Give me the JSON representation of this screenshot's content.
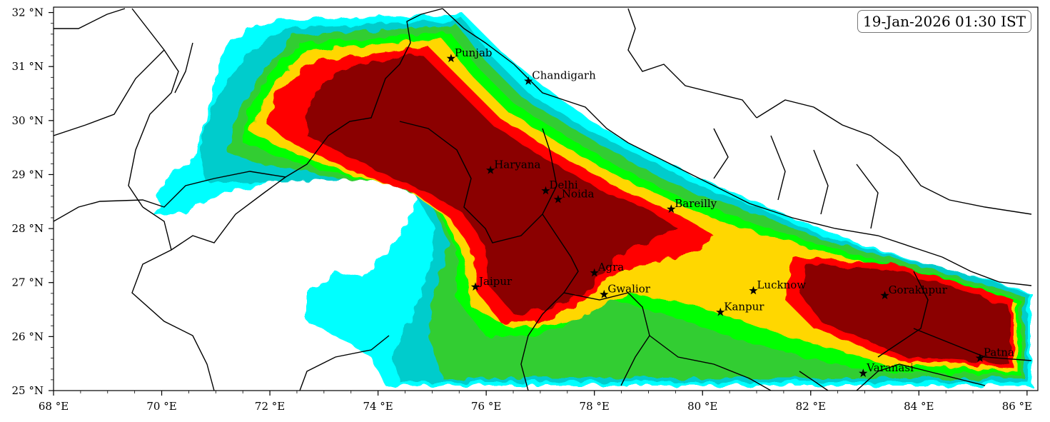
{
  "timestamp": "19-Jan-2026 01:30 IST",
  "colors": {
    "level1": "#00ffff",
    "level2": "#00cccc",
    "level3": "#32cd32",
    "level4": "#00ff00",
    "level5": "#ffd700",
    "level6": "#ff0000",
    "level7": "#8b0000",
    "border": "#000000"
  },
  "y_ticks": [
    "32 °N",
    "31 °N",
    "30 °N",
    "29 °N",
    "28 °N",
    "27 °N",
    "26 °N",
    "25 °N"
  ],
  "x_ticks": [
    "68 °E",
    "70 °E",
    "72 °E",
    "74 °E",
    "76 °E",
    "78 °E",
    "80 °E",
    "82 °E",
    "84 °E",
    "86 °E"
  ],
  "cities": [
    {
      "name": "Punjab",
      "lon": 75.35,
      "lat": 31.15
    },
    {
      "name": "Chandigarh",
      "lon": 76.78,
      "lat": 30.73
    },
    {
      "name": "Haryana",
      "lon": 76.08,
      "lat": 29.08
    },
    {
      "name": "Delhi",
      "lon": 77.1,
      "lat": 28.7
    },
    {
      "name": "Noida",
      "lon": 77.33,
      "lat": 28.54
    },
    {
      "name": "Bareilly",
      "lon": 79.42,
      "lat": 28.36
    },
    {
      "name": "Agra",
      "lon": 78.0,
      "lat": 27.18
    },
    {
      "name": "Jaipur",
      "lon": 75.8,
      "lat": 26.92
    },
    {
      "name": "Gwalior",
      "lon": 78.18,
      "lat": 26.78
    },
    {
      "name": "Lucknow",
      "lon": 80.94,
      "lat": 26.85
    },
    {
      "name": "Kanpur",
      "lon": 80.33,
      "lat": 26.45
    },
    {
      "name": "Gorakhpur",
      "lon": 83.37,
      "lat": 26.76
    },
    {
      "name": "Varanasi",
      "lon": 82.97,
      "lat": 25.32
    },
    {
      "name": "Patna",
      "lon": 85.13,
      "lat": 25.6
    }
  ]
}
